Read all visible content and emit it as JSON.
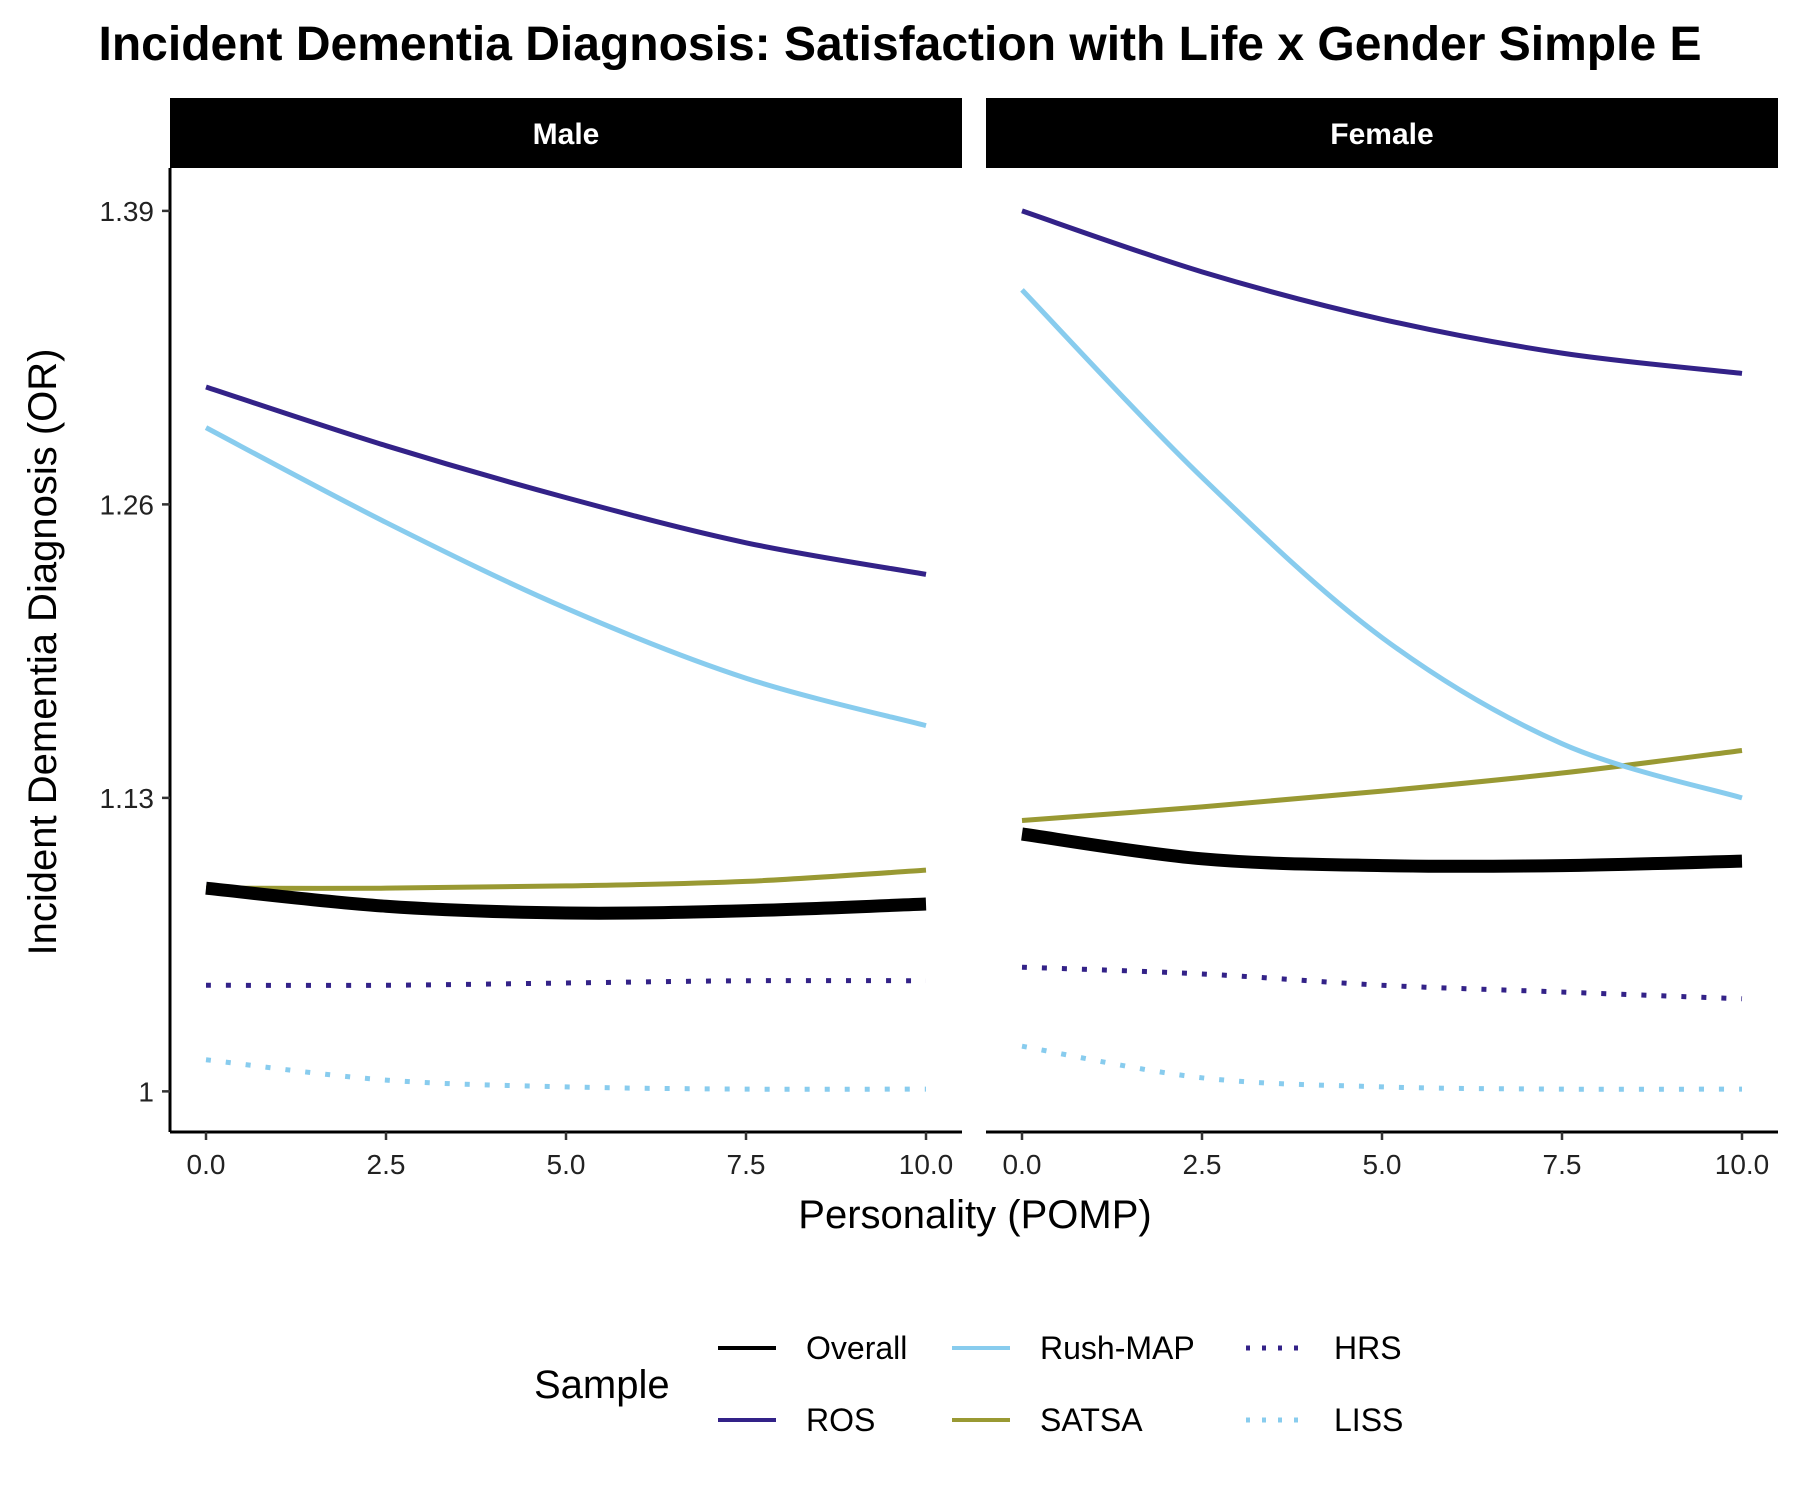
{
  "chart_data": {
    "type": "line",
    "title": "Incident Dementia Diagnosis: Satisfaction with Life x Gender Simple E",
    "xlabel": "Personality (POMP)",
    "ylabel": "Incident Dementia Diagnosis (OR)",
    "xlim": [
      -0.5,
      10.5
    ],
    "ylim": [
      0.982,
      1.409
    ],
    "x_ticks": [
      0,
      2.5,
      5,
      7.5,
      10
    ],
    "x_tick_labels": [
      "0.0",
      "2.5",
      "5.0",
      "7.5",
      "10.0"
    ],
    "y_ticks": [
      1,
      1.13,
      1.26,
      1.39
    ],
    "y_tick_labels": [
      "1",
      "1.13",
      "1.26",
      "1.39"
    ],
    "x": [
      0,
      2.5,
      5,
      7.5,
      10
    ],
    "panels": [
      {
        "label": "Male",
        "series": [
          {
            "name": "Overall",
            "values": [
              1.09,
              1.082,
              1.079,
              1.08,
              1.083
            ]
          },
          {
            "name": "ROS",
            "values": [
              1.312,
              1.286,
              1.263,
              1.243,
              1.229
            ]
          },
          {
            "name": "Rush-MAP",
            "values": [
              1.294,
              1.252,
              1.214,
              1.183,
              1.162
            ]
          },
          {
            "name": "SATSA",
            "values": [
              1.09,
              1.09,
              1.091,
              1.093,
              1.098
            ]
          },
          {
            "name": "HRS",
            "values": [
              1.047,
              1.047,
              1.048,
              1.049,
              1.049
            ]
          },
          {
            "name": "LISS",
            "values": [
              1.014,
              1.005,
              1.002,
              1.001,
              1.001
            ]
          }
        ]
      },
      {
        "label": "Female",
        "series": [
          {
            "name": "Overall",
            "values": [
              1.114,
              1.103,
              1.1,
              1.1,
              1.102
            ]
          },
          {
            "name": "ROS",
            "values": [
              1.39,
              1.363,
              1.342,
              1.327,
              1.318
            ]
          },
          {
            "name": "Rush-MAP",
            "values": [
              1.355,
              1.272,
              1.201,
              1.154,
              1.13
            ]
          },
          {
            "name": "SATSA",
            "values": [
              1.12,
              1.126,
              1.133,
              1.141,
              1.151
            ]
          },
          {
            "name": "HRS",
            "values": [
              1.055,
              1.052,
              1.047,
              1.044,
              1.041
            ]
          },
          {
            "name": "LISS",
            "values": [
              1.02,
              1.006,
              1.002,
              1.001,
              1.001
            ]
          }
        ]
      }
    ],
    "legend": {
      "title": "Sample",
      "position": "bottom",
      "entries": [
        {
          "name": "Overall",
          "color": "#000000",
          "style": "solid"
        },
        {
          "name": "ROS",
          "color": "#332288",
          "style": "solid"
        },
        {
          "name": "Rush-MAP",
          "color": "#88CCEE",
          "style": "solid"
        },
        {
          "name": "SATSA",
          "color": "#999933",
          "style": "solid"
        },
        {
          "name": "HRS",
          "color": "#332288",
          "style": "dotted"
        },
        {
          "name": "LISS",
          "color": "#88CCEE",
          "style": "dotted"
        }
      ]
    },
    "grid": false
  }
}
